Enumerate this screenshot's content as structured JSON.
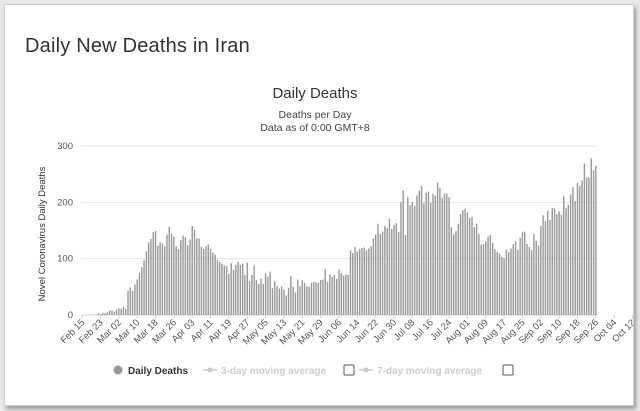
{
  "page": {
    "title": "Daily New Deaths in Iran"
  },
  "chart_data": {
    "type": "bar",
    "title": "Daily Deaths",
    "subtitle_1": "Deaths per Day",
    "subtitle_2": "Data as of 0:00 GMT+8",
    "ylabel": "Novel Coronavirus Daily Deaths",
    "xlabel": "",
    "ylim": [
      0,
      300
    ],
    "yticks": [
      0,
      100,
      200,
      300
    ],
    "grid": true,
    "bar_color": "#999999",
    "x_tick_labels": [
      "Feb 15",
      "Feb 23",
      "Mar 02",
      "Mar 10",
      "Mar 18",
      "Mar 26",
      "Apr 03",
      "Apr 11",
      "Apr 19",
      "Apr 27",
      "May 05",
      "May 13",
      "May 21",
      "May 29",
      "Jun 06",
      "Jun 14",
      "Jun 22",
      "Jun 30",
      "Jul 08",
      "Jul 16",
      "Jul 24",
      "Aug 01",
      "Aug 09",
      "Aug 17",
      "Aug 25",
      "Sep 02",
      "Sep 10",
      "Sep 18",
      "Sep 26",
      "Oct 04",
      "Oct 12"
    ],
    "start_date": "Feb 15",
    "series": [
      {
        "name": "Daily Deaths",
        "values": [
          0,
          0,
          0,
          0,
          0,
          1,
          0,
          3,
          2,
          4,
          3,
          5,
          8,
          8,
          6,
          10,
          12,
          11,
          15,
          11,
          43,
          49,
          43,
          54,
          63,
          75,
          85,
          97,
          113,
          129,
          135,
          147,
          149,
          123,
          129,
          127,
          122,
          143,
          157,
          144,
          139,
          122,
          117,
          133,
          141,
          138,
          124,
          134,
          158,
          151,
          136,
          136,
          121,
          117,
          122,
          125,
          117,
          111,
          107,
          98,
          94,
          91,
          88,
          87,
          73,
          92,
          80,
          89,
          94,
          89,
          91,
          71,
          93,
          60,
          71,
          88,
          62,
          55,
          65,
          55,
          74,
          68,
          77,
          48,
          60,
          51,
          47,
          51,
          45,
          35,
          48,
          69,
          50,
          40,
          63,
          51,
          62,
          57,
          51,
          50,
          57,
          59,
          58,
          57,
          62,
          63,
          81,
          59,
          72,
          68,
          71,
          64,
          81,
          75,
          70,
          72,
          71,
          115,
          110,
          121,
          113,
          117,
          119,
          120,
          115,
          118,
          122,
          136,
          143,
          162,
          144,
          148,
          158,
          154,
          171,
          153,
          160,
          163,
          147,
          200,
          221,
          142,
          209,
          195,
          200,
          194,
          212,
          221,
          229,
          198,
          217,
          219,
          199,
          215,
          212,
          235,
          226,
          208,
          215,
          216,
          209,
          156,
          143,
          149,
          162,
          179,
          186,
          189,
          182,
          172,
          174,
          156,
          162,
          144,
          125,
          126,
          130,
          139,
          142,
          128,
          117,
          112,
          109,
          103,
          101,
          116,
          112,
          118,
          126,
          131,
          116,
          137,
          147,
          148,
          126,
          121,
          115,
          144,
          132,
          123,
          158,
          177,
          166,
          185,
          169,
          190,
          189,
          179,
          184,
          178,
          211,
          190,
          196,
          214,
          227,
          202,
          235,
          229,
          239,
          269,
          244,
          244,
          278,
          257,
          265
        ]
      }
    ],
    "legend": [
      {
        "name": "Daily Deaths",
        "color": "#999999",
        "active": true
      },
      {
        "name": "3-day moving average",
        "color": "#cccccc",
        "active": false
      },
      {
        "name": "7-day moving average",
        "color": "#cccccc",
        "active": false
      }
    ]
  }
}
